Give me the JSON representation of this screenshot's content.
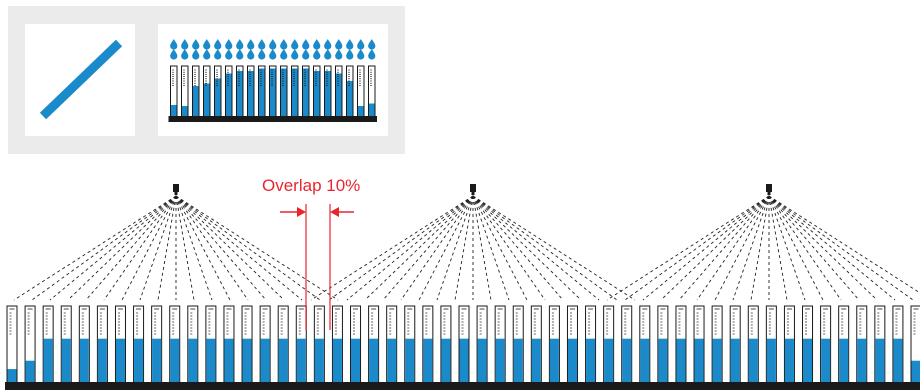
{
  "colors": {
    "water": "#1a8acb",
    "outline": "#1a1a1a",
    "base": "#1a1a1a",
    "overlap": "#e8262e",
    "spray": "#222222",
    "inset_background": "#ebebeb"
  },
  "overlap": {
    "label": "Overlap 10%",
    "icon": "double-arrow-icon"
  },
  "inset": {
    "line_icon": "diagonal-line-icon",
    "drop_icon": "water-drop-icon",
    "drop_count": 19,
    "gauge_count": 19,
    "fill_levels": [
      0.22,
      0.2,
      0.6,
      0.65,
      0.75,
      0.85,
      0.9,
      0.9,
      0.95,
      0.95,
      0.95,
      0.95,
      0.95,
      0.9,
      0.9,
      0.85,
      0.7,
      0.2,
      0.25
    ]
  },
  "main": {
    "nozzle_icon": "spray-nozzle-icon",
    "nozzle_count": 3,
    "gauge_count": 51,
    "fill_levels": [
      0.17,
      0.28,
      0.57,
      0.57,
      0.57,
      0.57,
      0.57,
      0.57,
      0.57,
      0.57,
      0.57,
      0.57,
      0.57,
      0.57,
      0.57,
      0.57,
      0.57,
      0.57,
      0.57,
      0.57,
      0.57,
      0.57,
      0.57,
      0.57,
      0.57,
      0.57,
      0.57,
      0.57,
      0.57,
      0.57,
      0.57,
      0.57,
      0.57,
      0.57,
      0.57,
      0.57,
      0.57,
      0.57,
      0.57,
      0.57,
      0.57,
      0.57,
      0.57,
      0.57,
      0.57,
      0.57,
      0.57,
      0.57,
      0.57,
      0.57,
      0.28
    ]
  }
}
